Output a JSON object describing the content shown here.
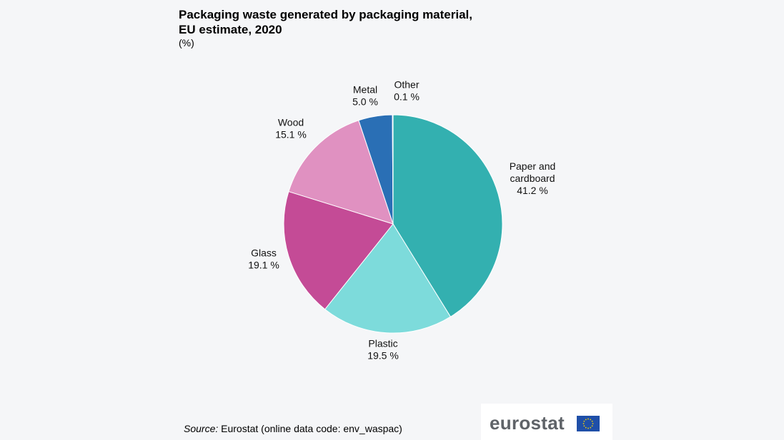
{
  "title_line1": "Packaging waste generated by packaging material,",
  "title_line2": "EU estimate, 2020",
  "unit": "(%)",
  "source": {
    "prefix": "Source:",
    "text": " Eurostat (online data code: env_waspac)"
  },
  "logo_text": "eurostat",
  "chart_data": {
    "type": "pie",
    "title": "Packaging waste generated by packaging material, EU estimate, 2020",
    "unit": "(%)",
    "slices": [
      {
        "name": "Paper and cardboard",
        "label_lines": [
          "Paper and",
          "cardboard"
        ],
        "value": 41.2,
        "display": "41.2 %",
        "color": "#33b0b0"
      },
      {
        "name": "Plastic",
        "label_lines": [
          "Plastic"
        ],
        "value": 19.5,
        "display": "19.5 %",
        "color": "#7ddbdb"
      },
      {
        "name": "Glass",
        "label_lines": [
          "Glass"
        ],
        "value": 19.1,
        "display": "19.1 %",
        "color": "#c44b96"
      },
      {
        "name": "Wood",
        "label_lines": [
          "Wood"
        ],
        "value": 15.1,
        "display": "15.1 %",
        "color": "#e091c1"
      },
      {
        "name": "Metal",
        "label_lines": [
          "Metal"
        ],
        "value": 5.0,
        "display": "5.0 %",
        "color": "#2a6fb5"
      },
      {
        "name": "Other",
        "label_lines": [
          "Other"
        ],
        "value": 0.1,
        "display": "0.1 %",
        "color": "#a9d7ea"
      }
    ]
  }
}
